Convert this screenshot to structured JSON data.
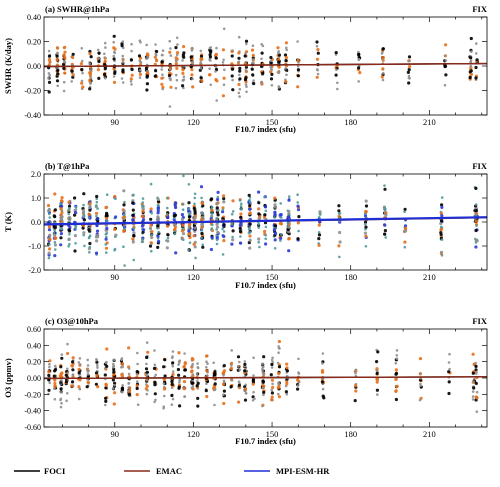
{
  "colors": {
    "foci": "#000000",
    "emac": "#8b2a1a",
    "mpi": "#1f2fd6",
    "scatter_gray": "#8f8f8f",
    "scatter_orange": "#e8701a",
    "scatter_teal": "#4f9a9a",
    "scatter_blue": "#2a3ad8"
  },
  "legend": {
    "items": [
      {
        "label": "FOCI",
        "color": "#000000"
      },
      {
        "label": "EMAC",
        "color": "#8b2a1a"
      },
      {
        "label": "MPI-ESM-HR",
        "color": "#1f2fd6"
      }
    ]
  },
  "chart_data": [
    {
      "type": "scatter",
      "panel_label": "(a) SWHR@1hPa",
      "corner_label": "FIX",
      "xlabel": "F10.7 index (sfu)",
      "ylabel": "SWHR (K/day)",
      "xlim": [
        63,
        232
      ],
      "ylim": [
        -0.4,
        0.4
      ],
      "xticks": [
        90,
        120,
        150,
        180,
        210
      ],
      "yticks": [
        -0.4,
        -0.2,
        0.0,
        0.2,
        0.4
      ],
      "ytick_labels": [
        "-0.40",
        "-0.20",
        "0.00",
        "0.20",
        "0.40"
      ],
      "spread": 0.09,
      "series_point_colors": [
        "#8f8f8f",
        "#e8701a",
        "#000000"
      ],
      "regression_lines": [
        {
          "name": "FOCI",
          "x": [
            63,
            232
          ],
          "y": [
            -0.004,
            0.02
          ]
        },
        {
          "name": "EMAC",
          "x": [
            63,
            232
          ],
          "y": [
            -0.004,
            0.02
          ]
        }
      ]
    },
    {
      "type": "scatter",
      "panel_label": "(b) T@1hPa",
      "corner_label": "FIX",
      "xlabel": "F10.7 index (sfu)",
      "ylabel": "T (K)",
      "xlim": [
        63,
        232
      ],
      "ylim": [
        -2.0,
        2.0
      ],
      "xticks": [
        90,
        120,
        150,
        180,
        210
      ],
      "yticks": [
        -2.0,
        -1.0,
        0.0,
        1.0,
        2.0
      ],
      "ytick_labels": [
        "-2.0",
        "-1.0",
        "0.0",
        "1.0",
        "2.0"
      ],
      "spread": 0.55,
      "series_point_colors": [
        "#4f9a9a",
        "#8f8f8f",
        "#2a3ad8",
        "#e8701a",
        "#000000"
      ],
      "regression_lines": [
        {
          "name": "FOCI",
          "x": [
            63,
            232
          ],
          "y": [
            -0.1,
            0.2
          ]
        },
        {
          "name": "EMAC",
          "x": [
            63,
            232
          ],
          "y": [
            -0.12,
            0.18
          ]
        },
        {
          "name": "MPI-ESM-HR",
          "x": [
            63,
            232
          ],
          "y": [
            -0.1,
            0.2
          ]
        }
      ]
    },
    {
      "type": "scatter",
      "panel_label": "(c) O3@10hPa",
      "corner_label": "FIX",
      "xlabel": "F10.7 index (sfu)",
      "ylabel": "O3 (ppmv)",
      "xlim": [
        63,
        232
      ],
      "ylim": [
        -0.6,
        0.6
      ],
      "xticks": [
        90,
        120,
        150,
        180,
        210
      ],
      "yticks": [
        -0.6,
        -0.4,
        -0.2,
        0.0,
        0.2,
        0.4,
        0.6
      ],
      "ytick_labels": [
        "-0.60",
        "-0.40",
        "-0.20",
        "0.00",
        "0.20",
        "0.40",
        "0.60"
      ],
      "spread": 0.15,
      "series_point_colors": [
        "#8f8f8f",
        "#e8701a",
        "#000000"
      ],
      "regression_lines": [
        {
          "name": "FOCI",
          "x": [
            63,
            232
          ],
          "y": [
            -0.005,
            0.015
          ]
        },
        {
          "name": "EMAC",
          "x": [
            63,
            232
          ],
          "y": [
            -0.005,
            0.015
          ]
        }
      ]
    }
  ]
}
